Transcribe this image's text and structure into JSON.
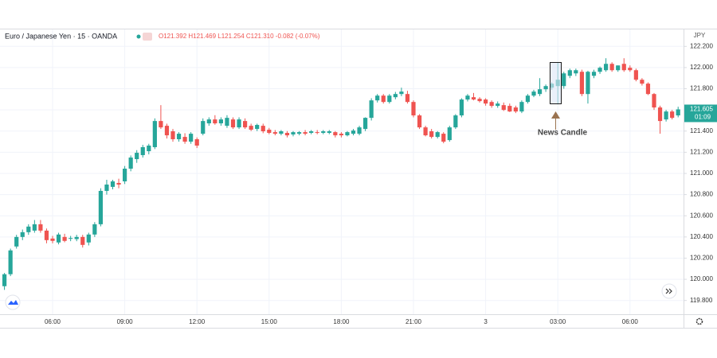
{
  "chart_data": {
    "type": "candlestick",
    "symbol": "Euro / Japanese Yen · 15 · OANDA",
    "ohlc_text": "O121.392 H121.469 L121.254 C121.310 -0.082 (-0.07%)",
    "currency": "JPY",
    "annotation": "News Candle",
    "last_price": {
      "value": 121.605,
      "label": "121.605"
    },
    "countdown": "01:09",
    "up_color": "#26a69a",
    "down_color": "#ef5350",
    "grid": true,
    "ylim": [
      119.67,
      122.36
    ],
    "yticks": [
      {
        "value": 122.2,
        "label": "122.200"
      },
      {
        "value": 122.0,
        "label": "122.000"
      },
      {
        "value": 121.8,
        "label": "121.800"
      },
      {
        "value": 121.6,
        "label": "121.600"
      },
      {
        "value": 121.4,
        "label": "121.400"
      },
      {
        "value": 121.2,
        "label": "121.200"
      },
      {
        "value": 121.0,
        "label": "121.000"
      },
      {
        "value": 120.8,
        "label": "120.800"
      },
      {
        "value": 120.6,
        "label": "120.600"
      },
      {
        "value": 120.4,
        "label": "120.400"
      },
      {
        "value": 120.2,
        "label": "120.200"
      },
      {
        "value": 120.0,
        "label": "120.000"
      },
      {
        "value": 119.8,
        "label": "119.800"
      }
    ],
    "categories": [
      null,
      null,
      null,
      null,
      null,
      null,
      null,
      null,
      "06:00",
      null,
      null,
      null,
      null,
      null,
      null,
      null,
      null,
      null,
      null,
      null,
      "09:00",
      null,
      null,
      null,
      null,
      null,
      null,
      null,
      null,
      null,
      null,
      null,
      "12:00",
      null,
      null,
      null,
      null,
      null,
      null,
      null,
      null,
      null,
      null,
      null,
      "15:00",
      null,
      null,
      null,
      null,
      null,
      null,
      null,
      null,
      null,
      null,
      null,
      "18:00",
      null,
      null,
      null,
      null,
      null,
      null,
      null,
      null,
      null,
      null,
      null,
      "21:00",
      null,
      null,
      null,
      null,
      null,
      null,
      null,
      null,
      null,
      null,
      null,
      "3",
      null,
      null,
      null,
      null,
      null,
      null,
      null,
      null,
      null,
      null,
      null,
      "03:00",
      null,
      null,
      null,
      null,
      null,
      null,
      null,
      null,
      null,
      null,
      null,
      "06:00",
      null,
      null,
      null,
      null,
      null,
      null,
      null,
      null
    ],
    "open": [
      119.935,
      120.048,
      120.31,
      120.4,
      120.445,
      120.46,
      120.52,
      120.46,
      120.385,
      120.348,
      120.4,
      120.385,
      120.38,
      120.4,
      120.348,
      120.423,
      120.52,
      120.835,
      120.873,
      120.91,
      120.925,
      121.045,
      121.135,
      121.173,
      121.21,
      121.248,
      121.495,
      121.45,
      121.398,
      121.323,
      121.345,
      121.3,
      121.323,
      121.375,
      121.473,
      121.51,
      121.473,
      121.45,
      121.51,
      121.435,
      121.495,
      121.45,
      121.42,
      121.45,
      121.413,
      121.39,
      121.375,
      121.383,
      121.368,
      121.375,
      121.39,
      121.383,
      121.39,
      121.383,
      121.383,
      121.39,
      121.375,
      121.36,
      121.375,
      121.375,
      121.42,
      121.525,
      121.69,
      121.735,
      121.675,
      121.72,
      121.75,
      121.75,
      121.675,
      121.548,
      121.435,
      121.398,
      121.345,
      121.375,
      121.315,
      121.435,
      121.548,
      121.698,
      121.72,
      121.705,
      121.698,
      121.675,
      121.638,
      121.645,
      121.638,
      121.623,
      121.585,
      121.675,
      121.735,
      121.75,
      121.795,
      121.81,
      121.825,
      121.825,
      121.922,
      121.945,
      121.96,
      121.75,
      121.922,
      121.96,
      121.975,
      122.035,
      121.975,
      122.035,
      121.998,
      121.975,
      121.885,
      121.848,
      121.75,
      121.623,
      121.51,
      121.585,
      121.548
    ],
    "high": [
      120.06,
      120.29,
      120.42,
      120.47,
      120.52,
      120.56,
      120.56,
      120.48,
      120.41,
      120.44,
      120.43,
      120.41,
      120.42,
      120.42,
      120.44,
      120.54,
      120.86,
      120.94,
      120.94,
      120.95,
      121.07,
      121.17,
      121.22,
      121.27,
      121.28,
      121.52,
      121.645,
      121.47,
      121.42,
      121.39,
      121.38,
      121.39,
      121.34,
      121.52,
      121.53,
      121.55,
      121.53,
      121.55,
      121.53,
      121.53,
      121.52,
      121.47,
      121.47,
      121.47,
      121.43,
      121.41,
      121.41,
      121.4,
      121.4,
      121.4,
      121.41,
      121.41,
      121.41,
      121.41,
      121.41,
      121.4,
      121.39,
      121.4,
      121.42,
      121.45,
      121.53,
      121.71,
      121.75,
      121.75,
      121.75,
      121.77,
      121.81,
      121.78,
      121.69,
      121.56,
      121.45,
      121.42,
      121.4,
      121.39,
      121.45,
      121.56,
      121.71,
      121.75,
      121.76,
      121.72,
      121.71,
      121.69,
      121.68,
      121.67,
      121.66,
      121.64,
      121.69,
      121.75,
      121.79,
      121.9,
      121.84,
      121.86,
      122.05,
      121.96,
      121.99,
      121.99,
      121.98,
      121.97,
      121.98,
      122.01,
      122.088,
      122.05,
      122.02,
      122.088,
      122.02,
      121.99,
      121.9,
      121.86,
      121.76,
      121.64,
      121.6,
      121.6,
      121.63
    ],
    "low": [
      119.9,
      120.03,
      120.29,
      120.37,
      120.42,
      120.44,
      120.44,
      120.34,
      120.34,
      120.33,
      120.35,
      120.36,
      120.36,
      120.3,
      120.32,
      120.4,
      120.5,
      120.8,
      120.85,
      120.86,
      120.9,
      121.02,
      121.1,
      121.15,
      121.18,
      121.23,
      121.42,
      121.33,
      121.3,
      121.3,
      121.28,
      121.28,
      121.24,
      121.36,
      121.45,
      121.46,
      121.45,
      121.43,
      121.42,
      121.42,
      121.42,
      121.4,
      121.4,
      121.38,
      121.37,
      121.36,
      121.36,
      121.34,
      121.35,
      121.36,
      121.36,
      121.37,
      121.37,
      121.37,
      121.37,
      121.34,
      121.34,
      121.35,
      121.36,
      121.36,
      121.4,
      121.5,
      121.67,
      121.66,
      121.66,
      121.7,
      121.73,
      121.66,
      121.53,
      121.42,
      121.35,
      121.33,
      121.33,
      121.285,
      121.3,
      121.42,
      121.53,
      121.68,
      121.69,
      121.67,
      121.64,
      121.62,
      121.62,
      121.59,
      121.58,
      121.57,
      121.57,
      121.66,
      121.72,
      121.73,
      121.77,
      121.79,
      121.653,
      121.8,
      121.9,
      121.92,
      121.73,
      121.66,
      121.9,
      121.94,
      121.96,
      121.96,
      121.96,
      121.96,
      121.96,
      121.87,
      121.83,
      121.74,
      121.6,
      121.375,
      121.49,
      121.51,
      121.53
    ],
    "close": [
      120.048,
      120.273,
      120.4,
      120.445,
      120.498,
      120.52,
      120.46,
      120.37,
      120.363,
      120.423,
      120.363,
      120.39,
      120.4,
      120.325,
      120.423,
      120.52,
      120.835,
      120.895,
      120.925,
      120.895,
      121.045,
      121.15,
      121.195,
      121.248,
      121.263,
      121.495,
      121.435,
      121.36,
      121.323,
      121.375,
      121.3,
      121.375,
      121.263,
      121.495,
      121.51,
      121.473,
      121.51,
      121.525,
      121.435,
      121.51,
      121.435,
      121.413,
      121.458,
      121.398,
      121.383,
      121.375,
      121.398,
      121.36,
      121.39,
      121.39,
      121.375,
      121.398,
      121.383,
      121.398,
      121.398,
      121.36,
      121.36,
      121.39,
      121.405,
      121.435,
      121.525,
      121.69,
      121.735,
      121.675,
      121.735,
      121.75,
      121.773,
      121.675,
      121.548,
      121.435,
      121.36,
      121.345,
      121.39,
      121.3,
      121.435,
      121.548,
      121.698,
      121.735,
      121.698,
      121.683,
      121.66,
      121.638,
      121.66,
      121.6,
      121.585,
      121.585,
      121.675,
      121.735,
      121.773,
      121.795,
      121.825,
      121.848,
      121.885,
      121.945,
      121.975,
      121.975,
      121.75,
      121.96,
      121.96,
      121.998,
      122.035,
      121.975,
      122.02,
      121.975,
      121.975,
      121.885,
      121.848,
      121.75,
      121.623,
      121.495,
      121.585,
      121.525,
      121.605
    ]
  }
}
